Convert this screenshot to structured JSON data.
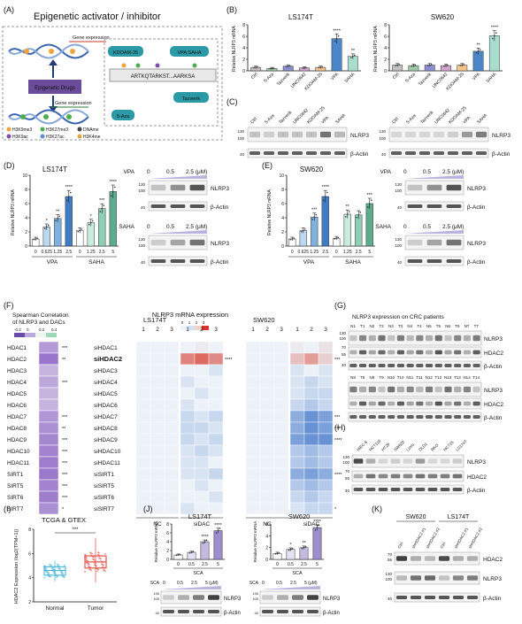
{
  "panels": {
    "A": {
      "letter": "(A)",
      "title": "Epigenetic activator / inhibitor",
      "gene_expression_top": "Gene expression",
      "gene_expression_bottom": "Gene expression",
      "epigenetic_drugs": "Epigenetic Drugs",
      "kdoam": "KDOAM-25",
      "vpa_saha": "VPA;SAHA",
      "sequence": "ARTKQTARKST...AARKSA",
      "tazverik": "Tazverik",
      "aza": "5-Aza",
      "legend": [
        "H3K9me3",
        "H3K27me3",
        "DNAme",
        "H3K9ac",
        "H3K27ac",
        "H3K4me"
      ]
    },
    "B": {
      "letter": "(B)",
      "ylabel": "Relative NLRP3 mRNA",
      "categories": [
        "Ctrl",
        "5-Aza",
        "Tazverik",
        "UNC0642",
        "KDOAM-25",
        "VPA",
        "SAHA"
      ],
      "ticks": [
        "0",
        "2",
        "4",
        "6",
        "8"
      ],
      "ylim": [
        0,
        8
      ],
      "colors": [
        "#c0c0c0",
        "#9bc9a6",
        "#8c8fcf",
        "#d3a6cf",
        "#f5c38c",
        "#4a86c8",
        "#a8dccf"
      ],
      "charts": [
        {
          "title": "LS174T",
          "values": [
            0.6,
            0.4,
            0.8,
            0.5,
            0.6,
            5.6,
            2.5
          ],
          "sig": [
            "",
            "",
            "",
            "",
            "",
            "****",
            "**"
          ]
        },
        {
          "title": "SW620",
          "values": [
            1.0,
            0.9,
            1.0,
            0.9,
            1.0,
            3.4,
            6.1
          ],
          "sig": [
            "",
            "",
            "",
            "",
            "",
            "**",
            "****"
          ]
        }
      ]
    },
    "C": {
      "letter": "(C)",
      "lanes": [
        "Ctrl",
        "5-Aza",
        "Tazverik",
        "UNC0642",
        "KDOAM-25",
        "VPA",
        "SAHA"
      ],
      "mw": [
        "130",
        "100",
        "40"
      ],
      "labels": [
        "NLRP3",
        "β-Actin"
      ]
    },
    "D": {
      "letter": "(D)",
      "title": "LS174T",
      "ylabel": "Relative NLRP3 mRNA",
      "ticks": [
        "0",
        "2",
        "4",
        "6",
        "8",
        "10"
      ],
      "ylim": [
        0,
        10
      ],
      "xticks": [
        "0",
        "0.625",
        "1.25",
        "2.5",
        "0",
        "1.25",
        "2.5",
        "5"
      ],
      "groups": [
        "VPA",
        "SAHA"
      ],
      "values": [
        1.0,
        2.7,
        3.9,
        7.0,
        2.2,
        3.3,
        5.3,
        7.7
      ],
      "sig": [
        "",
        "*",
        "**",
        "****",
        "",
        "*",
        "***",
        "****"
      ],
      "colors": [
        "#ffffff",
        "#bcd7ee",
        "#7fb1df",
        "#3f7cc4",
        "#ffffff",
        "#c9ecdd",
        "#8fcfb5",
        "#5cac8d"
      ],
      "blots": [
        {
          "drug": "VPA",
          "doses": [
            "0",
            "0.5",
            "2.5 (μM)"
          ],
          "labels": [
            "NLRP3",
            "β-Actin"
          ],
          "mw": [
            "130",
            "100",
            "40"
          ]
        },
        {
          "drug": "SAHA",
          "doses": [
            "0",
            "0.5",
            "2.5 (μM)"
          ],
          "labels": [
            "NLRP3",
            "β-Actin"
          ],
          "mw": [
            "130",
            "100",
            "40"
          ]
        }
      ]
    },
    "E": {
      "letter": "(E)",
      "title": "SW620",
      "ylabel": "Relative NLRP3 mRNA",
      "ticks": [
        "0",
        "2",
        "4",
        "6",
        "8",
        "10"
      ],
      "ylim": [
        0,
        10
      ],
      "xticks": [
        "0",
        "0.625",
        "1.25",
        "2.5",
        "0",
        "1.25",
        "2.5",
        "5"
      ],
      "groups": [
        "VPA",
        "SAHA"
      ],
      "values": [
        1.0,
        2.2,
        4.1,
        7.0,
        1.1,
        4.5,
        4.4,
        6.0
      ],
      "sig": [
        "",
        "",
        "***",
        "****",
        "",
        "**",
        "",
        "***"
      ],
      "colors": [
        "#ffffff",
        "#bcd7ee",
        "#7fb1df",
        "#3f7cc4",
        "#ffffff",
        "#c9ecdd",
        "#8fcfb5",
        "#5cac8d"
      ],
      "blots": [
        {
          "drug": "VPA",
          "doses": [
            "0",
            "0.5",
            "2.5 (μM)"
          ],
          "labels": [
            "NLRP3",
            "β-Actin"
          ],
          "mw": [
            "130",
            "100",
            "40"
          ]
        },
        {
          "drug": "SAHA",
          "doses": [
            "0",
            "0.5",
            "2.5 (μM)"
          ],
          "labels": [
            "NLRP3",
            "β-Actin"
          ],
          "mw": [
            "130",
            "100",
            "40"
          ]
        }
      ]
    },
    "F": {
      "letter": "(F)",
      "spearman_title": "Spearman Correlation of NLRP3 and DACs",
      "spearman_scale": [
        "-0.2",
        "0",
        "0.2",
        "0.4"
      ],
      "heatmap_title": "NLRP3 mRNA expression",
      "heatmap_scale": [
        "0",
        "1",
        "2",
        "3"
      ],
      "genes": [
        "HDAC1",
        "HDAC2",
        "HDAC3",
        "HDAC4",
        "HDAC5",
        "HDAC6",
        "HDAC7",
        "HDAC8",
        "HDAC9",
        "HDAC10",
        "HDAC11",
        "SIRT1",
        "SIRT5",
        "SIRT6",
        "SIRT7"
      ],
      "gene_sig": [
        "***",
        "**",
        "",
        "***",
        "",
        "",
        "***",
        "**",
        "***",
        "***",
        "***",
        "***",
        "***",
        "***",
        "*"
      ],
      "spearman_values": [
        0.1,
        0.25,
        0.0,
        0.05,
        0.0,
        0.0,
        0.12,
        0.15,
        0.18,
        0.2,
        0.22,
        0.24,
        0.2,
        0.22,
        0.15
      ],
      "si_labels": [
        "siHDAC1",
        "siHDAC2",
        "siHDAC3",
        "siHDAC4",
        "siHDAC5",
        "siHDAC6",
        "siHDAC7",
        "siHDAC8",
        "siHDAC9",
        "siHDAC10",
        "siHDAC11",
        "siSIRT1",
        "siSIRT5",
        "siSIRT6",
        "siSIRT7"
      ],
      "highlight_color": "#d9342b",
      "cols": [
        "1",
        "2",
        "3"
      ],
      "lines": [
        {
          "name": "LS174T",
          "nc": [
            1.0,
            1.0,
            1.0,
            1.0,
            1.0,
            1.0,
            1.0,
            1.0,
            1.0,
            1.0,
            1.0,
            1.0,
            1.0,
            1.0,
            1.0
          ],
          "si": [
            [
              1.0,
              1.1,
              1.0
            ],
            [
              2.3,
              2.6,
              2.2
            ],
            [
              1.0,
              1.0,
              0.9
            ],
            [
              0.9,
              1.0,
              1.0
            ],
            [
              1.0,
              0.9,
              1.0
            ],
            [
              0.9,
              1.0,
              1.0
            ],
            [
              0.8,
              0.9,
              0.8
            ],
            [
              0.8,
              0.8,
              0.9
            ],
            [
              0.8,
              0.9,
              0.8
            ],
            [
              0.9,
              0.8,
              0.9
            ],
            [
              0.9,
              0.9,
              1.0
            ],
            [
              0.9,
              0.9,
              0.8
            ],
            [
              1.0,
              0.9,
              1.0
            ],
            [
              1.0,
              1.0,
              0.9
            ],
            [
              0.9,
              1.0,
              1.0
            ]
          ],
          "sig": [
            "",
            "****",
            "",
            "",
            "",
            "",
            "",
            "",
            "",
            "",
            "",
            "",
            "",
            "",
            ""
          ]
        },
        {
          "name": "SW620",
          "nc": [
            1.0,
            1.0,
            1.0,
            1.0,
            1.0,
            1.0,
            1.0,
            1.0,
            1.0,
            1.0,
            1.0,
            1.0,
            1.0,
            1.0,
            1.0
          ],
          "si": [
            [
              1.1,
              1.0,
              1.2
            ],
            [
              1.6,
              2.0,
              1.4
            ],
            [
              0.9,
              1.0,
              0.9
            ],
            [
              0.9,
              0.8,
              0.9
            ],
            [
              0.9,
              0.8,
              0.8
            ],
            [
              0.8,
              0.7,
              0.8
            ],
            [
              0.5,
              0.3,
              0.4
            ],
            [
              0.5,
              0.3,
              0.4
            ],
            [
              0.4,
              0.3,
              0.3
            ],
            [
              0.7,
              0.6,
              0.7
            ],
            [
              0.7,
              0.6,
              0.7
            ],
            [
              0.5,
              0.4,
              0.5
            ],
            [
              0.7,
              0.6,
              0.7
            ],
            [
              0.8,
              0.7,
              0.8
            ],
            [
              0.9,
              0.8,
              0.8
            ]
          ],
          "sig": [
            "",
            "***",
            "",
            "",
            "",
            "",
            "***",
            "***",
            "****",
            "",
            "",
            "****",
            "",
            "",
            "*"
          ]
        }
      ],
      "group_labels": [
        "NC",
        "siDAC"
      ]
    },
    "G": {
      "letter": "(G)",
      "title": "NLRP3 expression on CRC patients",
      "lanes_top": [
        "N1",
        "T1",
        "N2",
        "T2",
        "N3",
        "T3",
        "N4",
        "T4",
        "N5",
        "T5",
        "N6",
        "T6",
        "N7",
        "T7"
      ],
      "lanes_bottom": [
        "N8",
        "T8",
        "N9",
        "T9",
        "N10",
        "T10",
        "N11",
        "T11",
        "N12",
        "T12",
        "N13",
        "T13",
        "N14",
        "T14"
      ],
      "mw": [
        "130",
        "100",
        "70",
        "55",
        "40"
      ],
      "labels": [
        "NLRP3",
        "HDAC2",
        "β-Actin"
      ]
    },
    "H": {
      "letter": "(H)",
      "lanes": [
        "HIEC-6",
        "HCT116",
        "HT29",
        "SW620",
        "LoVo",
        "DLD1",
        "RKO",
        "HCT15",
        "LS174T"
      ],
      "mw": [
        "130",
        "100",
        "70",
        "55",
        "40"
      ],
      "labels": [
        "NLRP3",
        "HDAC2",
        "β-Actin"
      ]
    },
    "I": {
      "letter": "(I)",
      "title": "TCGA & GTEX",
      "ylabel": "HDAC2 Expression (log2(TPM+1))",
      "ticks": [
        "2",
        "4",
        "6",
        "8"
      ],
      "ylim": [
        2,
        8
      ],
      "groups": [
        "Normal",
        "Tumor"
      ],
      "medians": [
        4.6,
        5.3
      ],
      "q1": [
        4.2,
        4.8
      ],
      "q3": [
        4.9,
        5.8
      ],
      "whisker_low": [
        3.7,
        3.6
      ],
      "whisker_high": [
        5.4,
        7.3
      ],
      "colors": [
        "#4fb8d8",
        "#e8564d"
      ],
      "sig": "***"
    },
    "J": {
      "letter": "(J)",
      "ylabel": "Relative NLRP3 mRNA",
      "xlabel": "SCA",
      "xticks": [
        "0",
        "0.5",
        "2.5",
        "5"
      ],
      "colors": [
        "#ffffff",
        "#e5e1f2",
        "#c3badf",
        "#9c8fcb"
      ],
      "charts": [
        {
          "title": "LS174T",
          "ticks": [
            "0",
            "2",
            "4",
            "6",
            "8"
          ],
          "ylim": [
            0,
            8
          ],
          "values": [
            1.0,
            1.6,
            4.0,
            6.5
          ],
          "sig": [
            "",
            "",
            "****",
            "****"
          ]
        },
        {
          "title": "SW620",
          "ticks": [
            "0",
            "2",
            "4",
            "6"
          ],
          "ylim": [
            0,
            6
          ],
          "values": [
            1.0,
            1.7,
            2.0,
            5.4
          ],
          "sig": [
            "",
            "*",
            "**",
            "****"
          ]
        }
      ],
      "blot_header": "SCA",
      "blot_doses": [
        "0",
        "0.5",
        "2.5",
        "5 (μM)"
      ],
      "blot_labels": [
        "NLRP3",
        "β-Actin"
      ],
      "mw": [
        "130",
        "100",
        "40"
      ]
    },
    "K": {
      "letter": "(K)",
      "cells": [
        "SW620",
        "LS174T"
      ],
      "lanes": [
        "Ctrl",
        "shHDAC2 #1",
        "shHDAC2 #2"
      ],
      "mw": [
        "70",
        "55",
        "130",
        "100",
        "40"
      ],
      "labels": [
        "HDAC2",
        "NLRP3",
        "β-Actin"
      ]
    }
  }
}
